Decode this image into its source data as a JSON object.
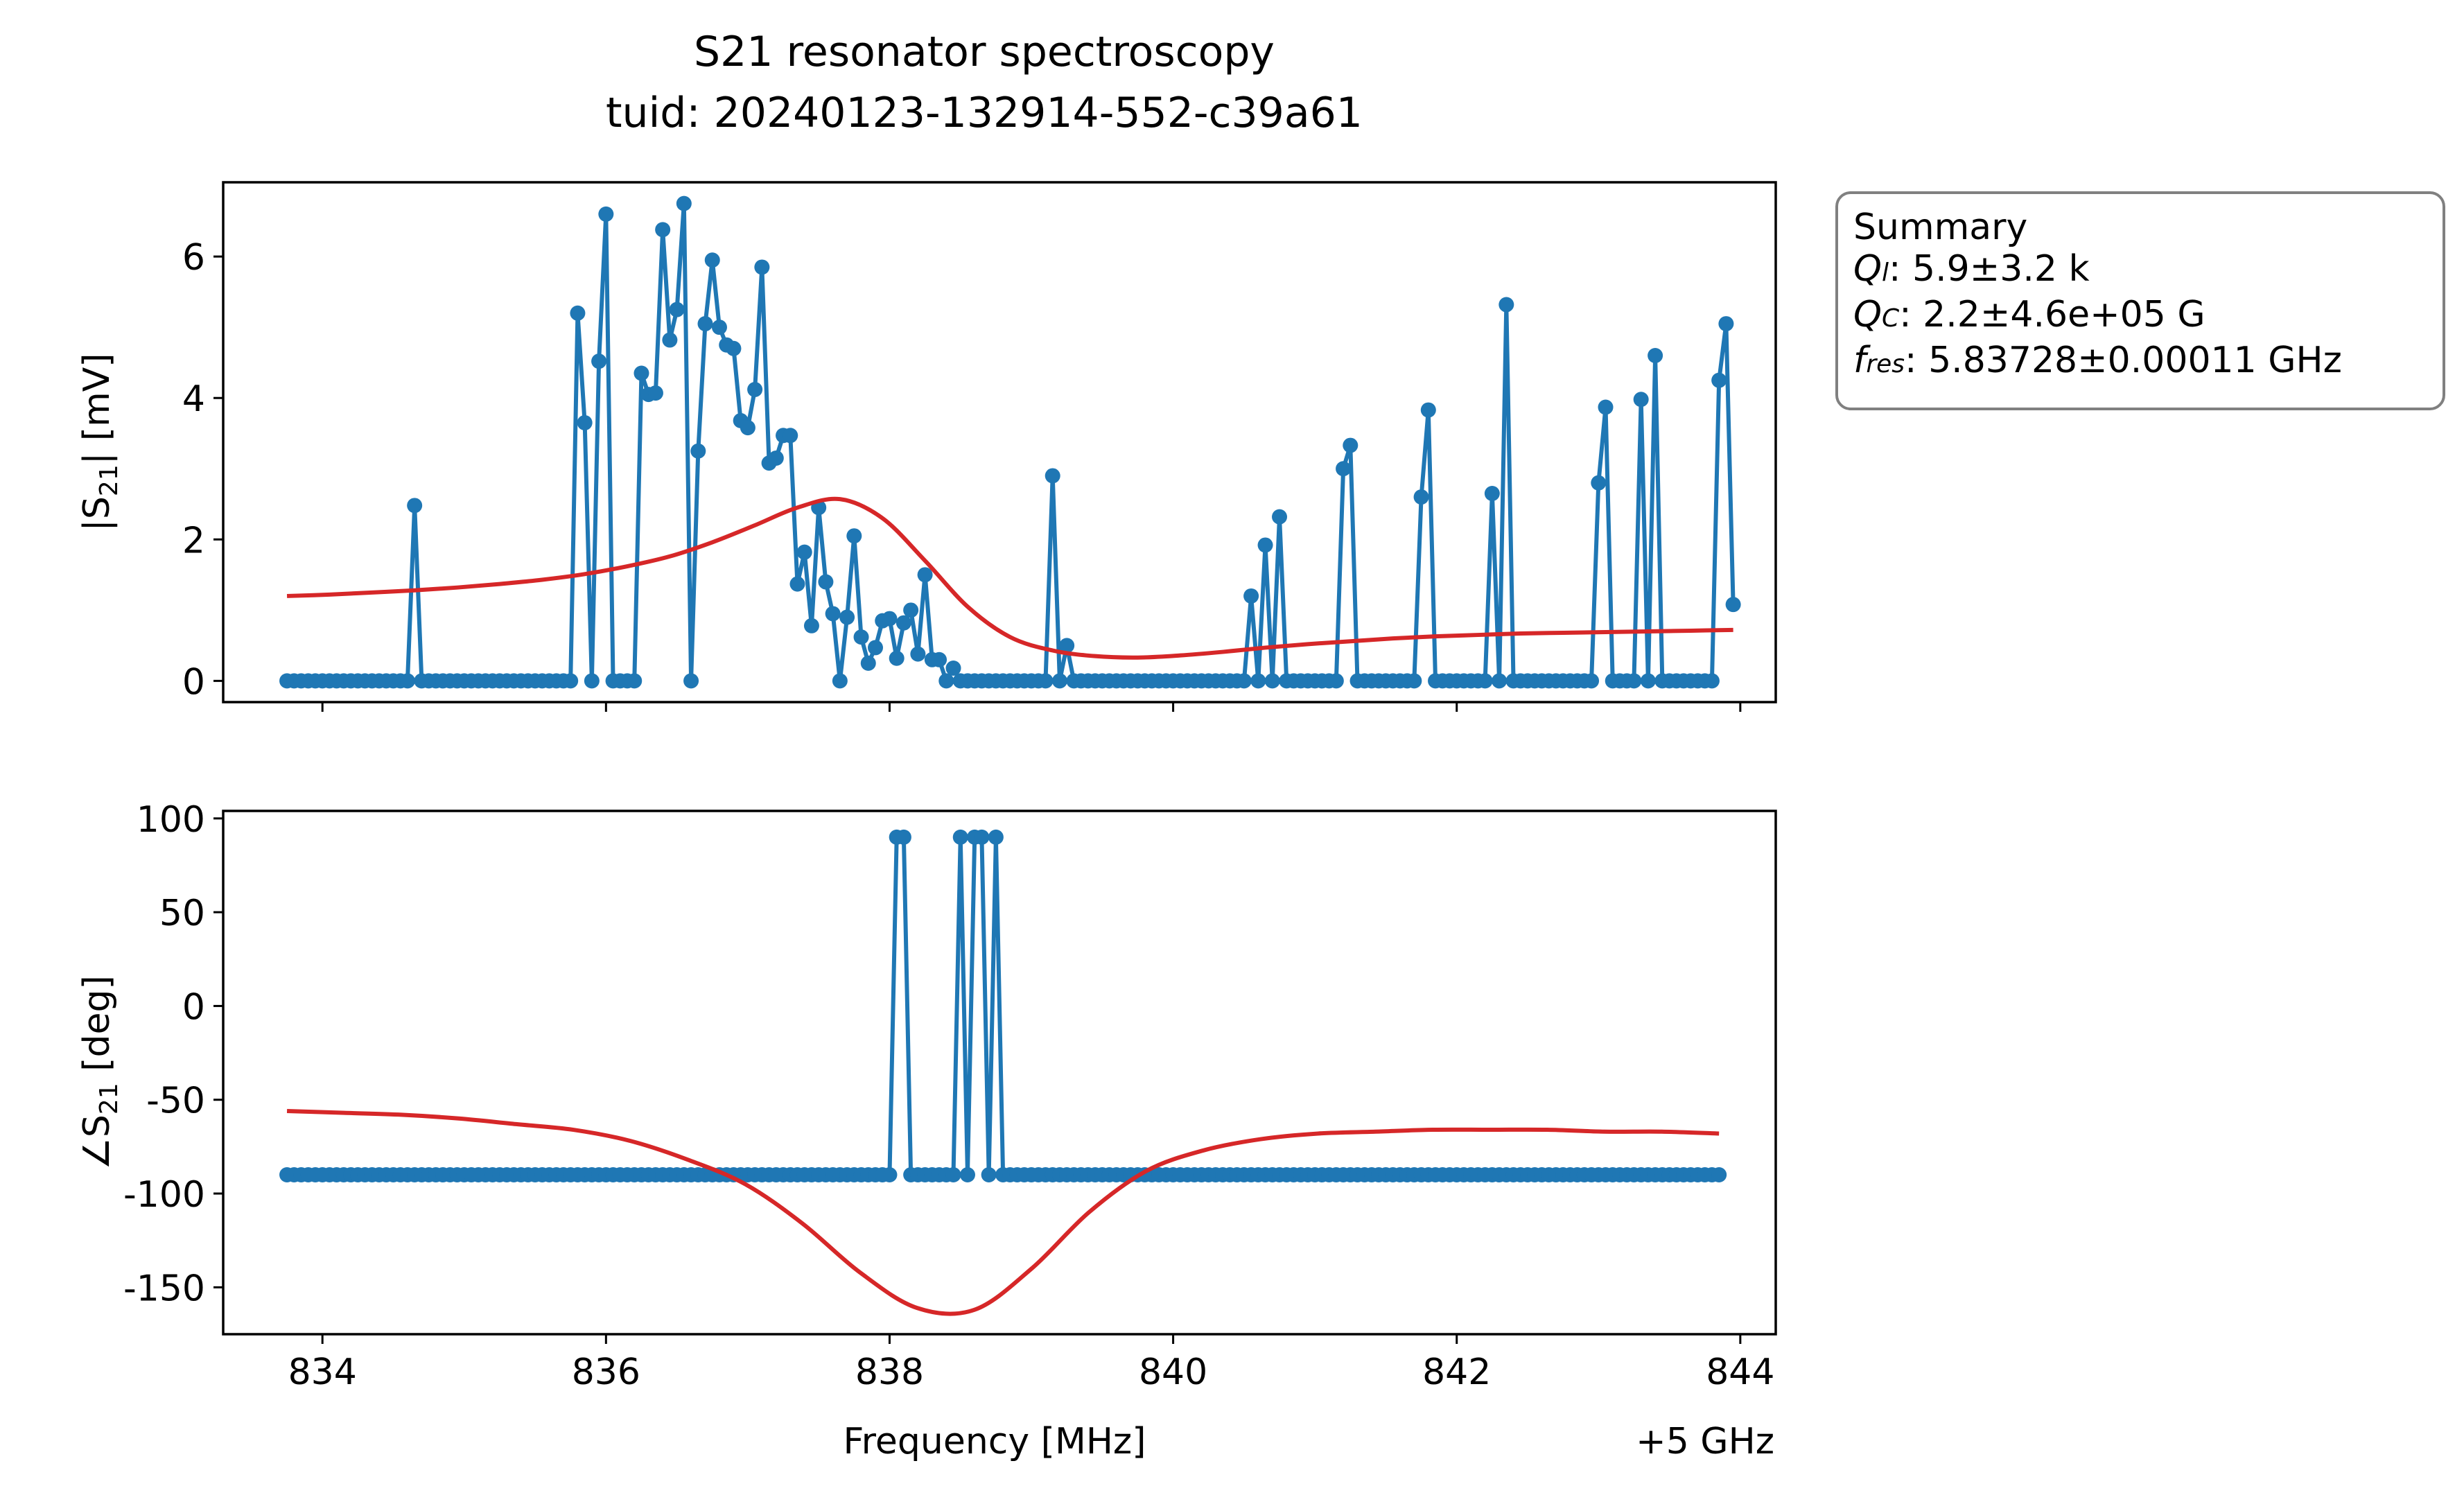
{
  "figure": {
    "title": "S21 resonator spectroscopy",
    "subtitle": "tuid: 20240123-132914-552-c39a61",
    "xlabel": "Frequency [MHz]",
    "x_offset_label": "+5 GHz"
  },
  "summary": {
    "heading": "Summary",
    "q_l_symbol": "Q",
    "q_l_sub": "l",
    "q_l_value": ": 5.9±3.2 k",
    "q_c_symbol": "Q",
    "q_c_sub": "C",
    "q_c_value": ": 2.2±4.6e+05 G",
    "f_res_symbol": "f",
    "f_res_sub": "res",
    "f_res_value": ": 5.83728±0.00011 GHz"
  },
  "colors": {
    "data": "#1f77b4",
    "fit": "#d62728"
  },
  "chart_data": [
    {
      "type": "line",
      "ylabel": "|S21| [mV]",
      "xlim": [
        833.3,
        844.25
      ],
      "ylim": [
        -0.3,
        7.05
      ],
      "xticks": [
        834,
        836,
        838,
        840,
        842,
        844
      ],
      "yticks": [
        0,
        2,
        4,
        6
      ],
      "x_start": 833.75,
      "x_step": 0.05,
      "series": [
        {
          "values": [
            0,
            0,
            0,
            0,
            0,
            0,
            0,
            0,
            0,
            0,
            0,
            0,
            0,
            0,
            0,
            0,
            0,
            0,
            2.48,
            0,
            0,
            0,
            0,
            0,
            0,
            0,
            0,
            0,
            0,
            0,
            0,
            0,
            0,
            0,
            0,
            0,
            0,
            0,
            0,
            0,
            0,
            5.2,
            3.65,
            0,
            4.52,
            6.6,
            0,
            0,
            0,
            0,
            4.35,
            4.05,
            4.07,
            6.38,
            4.82,
            5.25,
            6.75,
            0,
            3.25,
            5.05,
            5.95,
            5.0,
            4.75,
            4.7,
            3.68,
            3.58,
            4.12,
            5.85,
            3.08,
            3.15,
            3.47,
            3.47,
            1.37,
            1.82,
            0.78,
            2.45,
            1.4,
            0.95,
            0.0,
            0.9,
            2.05,
            0.62,
            0.25,
            0.47,
            0.85,
            0.88,
            0.32,
            0.82,
            1.0,
            0.38,
            1.5,
            0.3,
            0.3,
            0.0,
            0.18,
            0,
            0,
            0,
            0,
            0,
            0,
            0,
            0,
            0,
            0,
            0,
            0,
            0,
            2.9,
            0,
            0.5,
            0,
            0,
            0,
            0,
            0,
            0,
            0,
            0,
            0,
            0,
            0,
            0,
            0,
            0,
            0,
            0,
            0,
            0,
            0,
            0,
            0,
            0,
            0,
            0,
            0,
            1.2,
            0,
            1.92,
            0,
            2.32,
            0,
            0,
            0,
            0,
            0,
            0,
            0,
            0,
            3.0,
            3.33,
            0,
            0,
            0,
            0,
            0,
            0,
            0,
            0,
            0,
            2.6,
            3.83,
            0,
            0,
            0,
            0,
            0,
            0,
            0,
            0,
            2.65,
            0,
            5.32,
            0,
            0,
            0,
            0,
            0,
            0,
            0,
            0,
            0,
            0,
            0,
            0,
            2.8,
            3.87,
            0,
            0,
            0,
            0,
            3.98,
            0,
            4.6,
            0,
            0,
            0,
            0,
            0,
            0,
            0,
            0,
            4.25,
            5.05,
            1.08
          ]
        },
        {
          "values": [
            1.2,
            1.22,
            1.25,
            1.28,
            1.32,
            1.37,
            1.43,
            1.51,
            1.62,
            1.76,
            1.96,
            2.2,
            2.45,
            2.57,
            2.3,
            1.7,
            1.05,
            0.62,
            0.43,
            0.35,
            0.33,
            0.36,
            0.41,
            0.47,
            0.52,
            0.56,
            0.6,
            0.63,
            0.65,
            0.67,
            0.68,
            0.69,
            0.7,
            0.71,
            0.72
          ]
        }
      ]
    },
    {
      "type": "line",
      "ylabel": "∠S21 [deg]",
      "xlim": [
        833.3,
        844.25
      ],
      "ylim": [
        -175,
        104
      ],
      "xticks": [
        834,
        836,
        838,
        840,
        842,
        844
      ],
      "xtick_labels": [
        "834",
        "836",
        "838",
        "840",
        "842",
        "844"
      ],
      "yticks": [
        -150,
        -100,
        -50,
        0,
        50,
        100
      ],
      "ytick_labels": [
        "-150",
        "-100",
        "-50",
        "0",
        "50",
        "100"
      ],
      "x_start": 833.75,
      "x_step": 0.05,
      "series": [
        {
          "values": [
            -90,
            -90,
            -90,
            -90,
            -90,
            -90,
            -90,
            -90,
            -90,
            -90,
            -90,
            -90,
            -90,
            -90,
            -90,
            -90,
            -90,
            -90,
            -90,
            -90,
            -90,
            -90,
            -90,
            -90,
            -90,
            -90,
            -90,
            -90,
            -90,
            -90,
            -90,
            -90,
            -90,
            -90,
            -90,
            -90,
            -90,
            -90,
            -90,
            -90,
            -90,
            -90,
            -90,
            -90,
            -90,
            -90,
            -90,
            -90,
            -90,
            -90,
            -90,
            -90,
            -90,
            -90,
            -90,
            -90,
            -90,
            -90,
            -90,
            -90,
            -90,
            -90,
            -90,
            -90,
            -90,
            -90,
            -90,
            -90,
            -90,
            -90,
            -90,
            -90,
            -90,
            -90,
            -90,
            -90,
            -90,
            -90,
            -90,
            -90,
            -90,
            -90,
            -90,
            -90,
            -90,
            -90,
            90,
            90,
            -90,
            -90,
            -90,
            -90,
            -90,
            -90,
            -90,
            90,
            -90,
            90,
            90,
            -90,
            90,
            -90,
            -90,
            -90,
            -90,
            -90,
            -90,
            -90,
            -90,
            -90,
            -90,
            -90,
            -90,
            -90,
            -90,
            -90,
            -90,
            -90,
            -90,
            -90,
            -90,
            -90,
            -90,
            -90,
            -90,
            -90,
            -90,
            -90,
            -90,
            -90,
            -90,
            -90,
            -90,
            -90,
            -90,
            -90,
            -90,
            -90,
            -90,
            -90,
            -90,
            -90,
            -90,
            -90,
            -90,
            -90,
            -90,
            -90,
            -90,
            -90,
            -90,
            -90,
            -90,
            -90,
            -90,
            -90,
            -90,
            -90,
            -90,
            -90,
            -90,
            -90,
            -90,
            -90,
            -90,
            -90,
            -90,
            -90,
            -90,
            -90,
            -90,
            -90,
            -90,
            -90,
            -90,
            -90,
            -90,
            -90,
            -90,
            -90,
            -90,
            -90,
            -90,
            -90,
            -90,
            -90,
            -90,
            -90,
            -90,
            -90,
            -90,
            -90,
            -90,
            -90,
            -90,
            -90,
            -90,
            -90,
            -90,
            -90,
            -90,
            -90,
            -90
          ]
        },
        {
          "values": [
            -56,
            -57,
            -58,
            -60,
            -63,
            -66,
            -72,
            -82,
            -95,
            -116,
            -142,
            -161,
            -162,
            -140,
            -110,
            -88,
            -77,
            -71,
            -68,
            -67,
            -66,
            -66,
            -66,
            -67,
            -67,
            -68
          ]
        }
      ]
    }
  ]
}
